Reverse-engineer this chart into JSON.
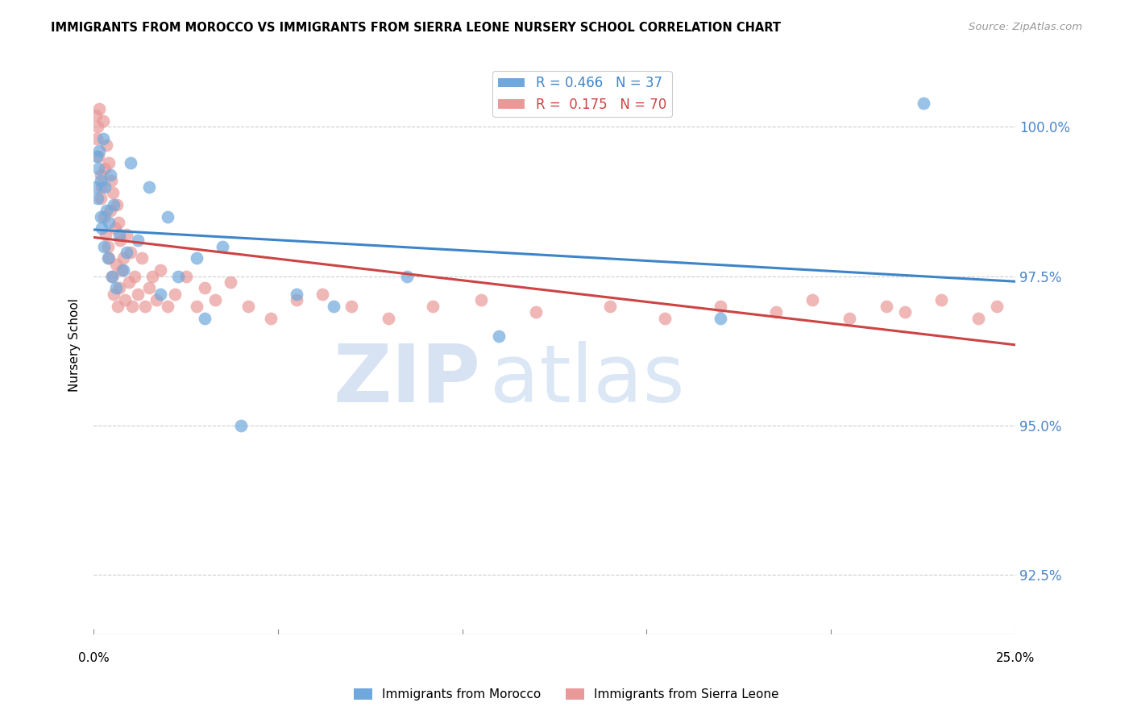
{
  "title": "IMMIGRANTS FROM MOROCCO VS IMMIGRANTS FROM SIERRA LEONE NURSERY SCHOOL CORRELATION CHART",
  "source": "Source: ZipAtlas.com",
  "ylabel": "Nursery School",
  "yticks": [
    92.5,
    95.0,
    97.5,
    100.0
  ],
  "ytick_labels": [
    "92.5%",
    "95.0%",
    "97.5%",
    "100.0%"
  ],
  "xlim": [
    0.0,
    25.0
  ],
  "ylim": [
    91.5,
    101.2
  ],
  "morocco_color": "#6fa8dc",
  "sierraleone_color": "#ea9999",
  "morocco_line_color": "#3d85c8",
  "sierraleone_line_color": "#cc4444",
  "morocco_R": 0.466,
  "morocco_N": 37,
  "sierraleone_R": 0.175,
  "sierraleone_N": 70,
  "legend_label_morocco": "Immigrants from Morocco",
  "legend_label_sierraleone": "Immigrants from Sierra Leone",
  "watermark_zip": "ZIP",
  "watermark_atlas": "atlas",
  "morocco_x": [
    0.05,
    0.08,
    0.1,
    0.12,
    0.15,
    0.18,
    0.2,
    0.22,
    0.25,
    0.28,
    0.3,
    0.35,
    0.38,
    0.42,
    0.45,
    0.5,
    0.55,
    0.6,
    0.7,
    0.8,
    0.9,
    1.0,
    1.2,
    1.5,
    1.8,
    2.0,
    2.3,
    2.8,
    3.0,
    3.5,
    4.0,
    5.5,
    6.5,
    8.5,
    11.0,
    17.0,
    22.5
  ],
  "morocco_y": [
    99.0,
    99.5,
    98.8,
    99.3,
    99.6,
    98.5,
    99.1,
    98.3,
    99.8,
    98.0,
    99.0,
    98.6,
    97.8,
    98.4,
    99.2,
    97.5,
    98.7,
    97.3,
    98.2,
    97.6,
    97.9,
    99.4,
    98.1,
    99.0,
    97.2,
    98.5,
    97.5,
    97.8,
    96.8,
    98.0,
    95.0,
    97.2,
    97.0,
    97.5,
    96.5,
    96.8,
    100.4
  ],
  "sierraleone_x": [
    0.05,
    0.08,
    0.1,
    0.12,
    0.15,
    0.18,
    0.2,
    0.22,
    0.25,
    0.28,
    0.3,
    0.32,
    0.35,
    0.38,
    0.4,
    0.42,
    0.45,
    0.48,
    0.5,
    0.52,
    0.55,
    0.58,
    0.6,
    0.62,
    0.65,
    0.68,
    0.7,
    0.72,
    0.75,
    0.8,
    0.85,
    0.9,
    0.95,
    1.0,
    1.05,
    1.1,
    1.2,
    1.3,
    1.4,
    1.5,
    1.6,
    1.7,
    1.8,
    2.0,
    2.2,
    2.5,
    2.8,
    3.0,
    3.3,
    3.7,
    4.2,
    4.8,
    5.5,
    6.2,
    7.0,
    8.0,
    9.2,
    10.5,
    12.0,
    14.0,
    15.5,
    17.0,
    18.5,
    19.5,
    20.5,
    21.5,
    22.0,
    23.0,
    24.0,
    24.5
  ],
  "sierraleone_y": [
    100.2,
    99.8,
    100.0,
    99.5,
    100.3,
    98.8,
    99.2,
    99.0,
    100.1,
    98.5,
    99.3,
    98.2,
    99.7,
    98.0,
    99.4,
    97.8,
    98.6,
    99.1,
    97.5,
    98.9,
    97.2,
    98.3,
    97.7,
    98.7,
    97.0,
    98.4,
    97.3,
    98.1,
    97.6,
    97.8,
    97.1,
    98.2,
    97.4,
    97.9,
    97.0,
    97.5,
    97.2,
    97.8,
    97.0,
    97.3,
    97.5,
    97.1,
    97.6,
    97.0,
    97.2,
    97.5,
    97.0,
    97.3,
    97.1,
    97.4,
    97.0,
    96.8,
    97.1,
    97.2,
    97.0,
    96.8,
    97.0,
    97.1,
    96.9,
    97.0,
    96.8,
    97.0,
    96.9,
    97.1,
    96.8,
    97.0,
    96.9,
    97.1,
    96.8,
    97.0
  ]
}
